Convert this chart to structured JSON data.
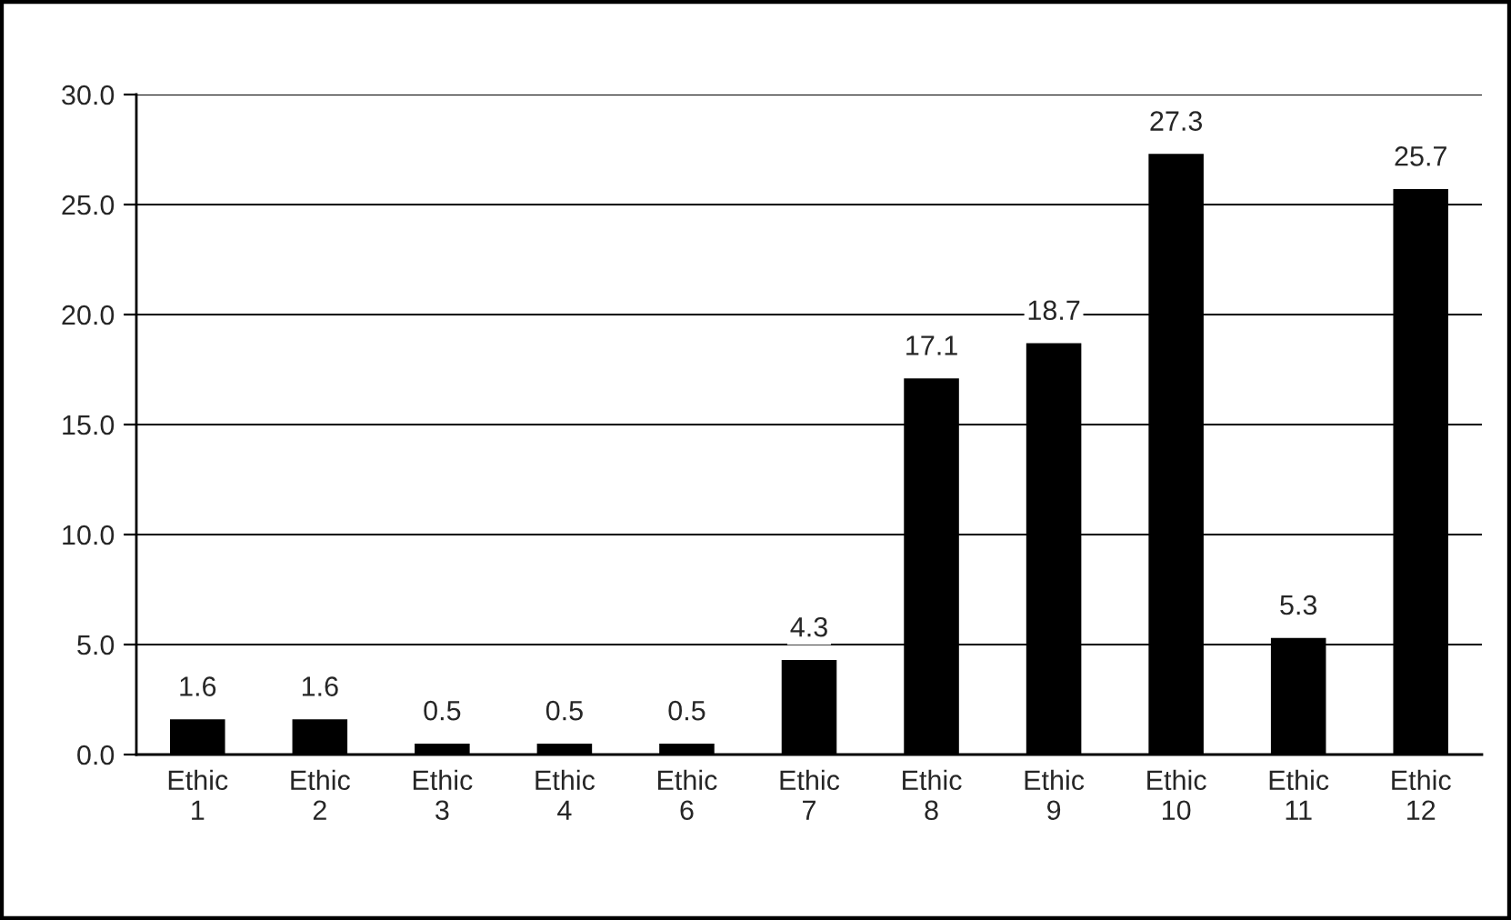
{
  "chart_data": {
    "type": "bar",
    "categories": [
      "Ethic 1",
      "Ethic 2",
      "Ethic 3",
      "Ethic 4",
      "Ethic 6",
      "Ethic 7",
      "Ethic 8",
      "Ethic 9",
      "Ethic 10",
      "Ethic 11",
      "Ethic 12"
    ],
    "values": [
      1.6,
      1.6,
      0.5,
      0.5,
      0.5,
      4.3,
      17.1,
      18.7,
      27.3,
      5.3,
      25.7
    ],
    "color": "#000000",
    "ylim": [
      0,
      30
    ],
    "yticks": [
      {
        "value": 0,
        "label": "0.0"
      },
      {
        "value": 5,
        "label": "5.0"
      },
      {
        "value": 10,
        "label": "10.0"
      },
      {
        "value": 15,
        "label": "15.0"
      },
      {
        "value": 20,
        "label": "20.0"
      },
      {
        "value": 25,
        "label": "25.0"
      },
      {
        "value": 30,
        "label": "30.0"
      }
    ],
    "grid": "y",
    "data_labels": true
  }
}
